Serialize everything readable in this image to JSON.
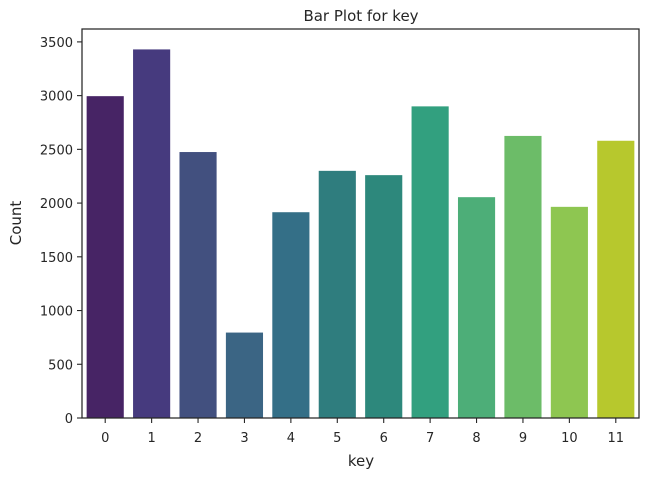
{
  "chart_data": {
    "type": "bar",
    "title": "Bar Plot for key",
    "xlabel": "key",
    "ylabel": "Count",
    "categories": [
      "0",
      "1",
      "2",
      "3",
      "4",
      "5",
      "6",
      "7",
      "8",
      "9",
      "10",
      "11"
    ],
    "values": [
      2995,
      3430,
      2475,
      795,
      1915,
      2300,
      2260,
      2900,
      2055,
      2625,
      1965,
      2580
    ],
    "colors": [
      "#472465",
      "#463a7e",
      "#42507f",
      "#3b6584",
      "#346f87",
      "#2f7d7e",
      "#2d887c",
      "#32a07f",
      "#4dae78",
      "#6cbc68",
      "#8ec651",
      "#b7c82d"
    ],
    "ylim": [
      0,
      3620
    ],
    "yticks": [
      0,
      500,
      1000,
      1500,
      2000,
      2500,
      3000,
      3500
    ],
    "grid": false,
    "legend": "none"
  }
}
